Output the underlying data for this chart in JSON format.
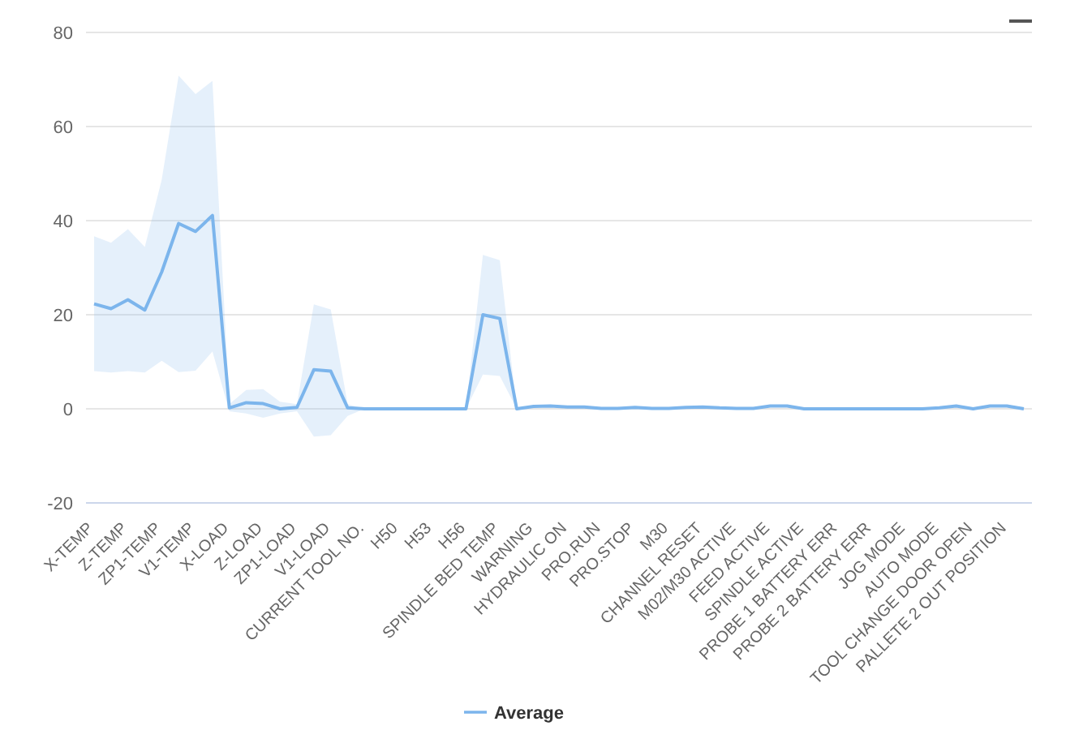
{
  "chart_data": {
    "type": "line",
    "categories": [
      "X-TEMP",
      null,
      "Z-TEMP",
      null,
      "ZP1-TEMP",
      null,
      "V1-TEMP",
      null,
      "X-LOAD",
      null,
      "Z-LOAD",
      null,
      "ZP1-LOAD",
      null,
      "V1-LOAD",
      null,
      "CURRENT TOOL NO.",
      null,
      "H50",
      null,
      "H53",
      null,
      "H56",
      null,
      "SPINDLE BED TEMP",
      null,
      "WARNING",
      null,
      "HYDRAULIC ON",
      null,
      "PRO.RUN",
      null,
      "PRO.STOP",
      null,
      "M30",
      null,
      "CHANNEL RESET",
      null,
      "M02/M30 ACTIVE",
      null,
      "FEED ACTIVE",
      null,
      "SPINDLE ACTIVE",
      null,
      "PROBE 1 BATTERY ERR",
      null,
      "PROBE 2 BATTERY ERR",
      null,
      "JOG MODE",
      null,
      "AUTO MODE",
      null,
      "TOOL CHANGE DOOR OPEN",
      null,
      "PALLETE 2 OUT POSITION",
      null
    ],
    "series": [
      {
        "name": "Average",
        "color": "#7cb5ec",
        "values": [
          22.3,
          21.3,
          23.2,
          21,
          29.1,
          39.4,
          37.7,
          41.1,
          0.2,
          1.3,
          1.1,
          0,
          0.3,
          8.3,
          8,
          0.2,
          0,
          0,
          0,
          0,
          0,
          0,
          0,
          20,
          19.2,
          0,
          0.5,
          0.6,
          0.4,
          0.4,
          0.1,
          0.1,
          0.3,
          0.1,
          0.1,
          0.3,
          0.4,
          0.2,
          0.1,
          0.1,
          0.6,
          0.6,
          0,
          0,
          0,
          0,
          0,
          0,
          0,
          0,
          0.2,
          0.6,
          0,
          0.6,
          0.6,
          0
        ],
        "lower": [
          8,
          7.7,
          8,
          7.7,
          10.2,
          7.8,
          8.1,
          12.2,
          -0.5,
          -1,
          -1.9,
          -1,
          -0.5,
          -5.9,
          -5.6,
          -1.5,
          0,
          0,
          0,
          0,
          0,
          0,
          0,
          7.3,
          7,
          0,
          0.5,
          0.6,
          0.4,
          0.4,
          0.1,
          0.1,
          0.3,
          0.1,
          0.1,
          0.3,
          0.4,
          0.2,
          0.1,
          0.1,
          0.6,
          0.6,
          0,
          0,
          0,
          0,
          0,
          0,
          0,
          0,
          0.2,
          0.6,
          0,
          0.6,
          0.6,
          0
        ],
        "upper": [
          36.7,
          35.3,
          38.2,
          34.4,
          48.7,
          70.8,
          66.9,
          69.7,
          1,
          4,
          4.2,
          1.5,
          1,
          22.2,
          21.1,
          1,
          0,
          0,
          0,
          0,
          0,
          0,
          0,
          32.7,
          31.6,
          0,
          0.5,
          0.6,
          0.4,
          0.4,
          0.1,
          0.1,
          0.3,
          0.1,
          0.1,
          0.3,
          0.4,
          0.2,
          0.1,
          0.1,
          0.6,
          0.6,
          0,
          0,
          0,
          0,
          0,
          0,
          0,
          0,
          0.2,
          0.6,
          0,
          0.6,
          0.6,
          0
        ]
      }
    ],
    "ylim": [
      -20,
      80
    ],
    "yticks": [
      -20,
      0,
      20,
      40,
      60,
      80
    ],
    "grid": "y",
    "legend": "bottom",
    "marker": "none",
    "line_style": "solid"
  }
}
